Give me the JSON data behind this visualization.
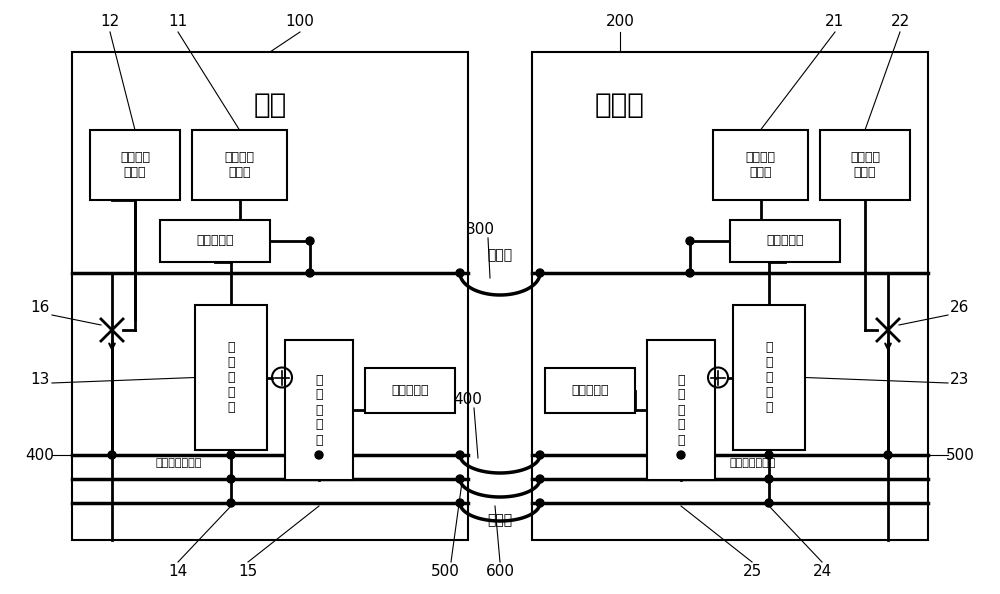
{
  "bg_color": "#ffffff",
  "fig_width": 10.0,
  "fig_height": 5.94,
  "loco_label": "机车",
  "work_label": "作业车",
  "label_100": "100",
  "label_200": "200",
  "label_11": "11",
  "label_12": "12",
  "label_13": "13",
  "label_14": "14",
  "label_15": "15",
  "label_16": "16",
  "label_21": "21",
  "label_22": "22",
  "label_23": "23",
  "label_24": "24",
  "label_25": "25",
  "label_26": "26",
  "label_300": "300",
  "label_400a": "400",
  "label_400b": "400",
  "label_500a": "500",
  "label_500b": "500",
  "label_600": "600",
  "pipe_lieche": "列车管",
  "pipe_zongfeng": "总风管",
  "pipe_first_single": "第一单独制动管",
  "pipe_second_single": "第二单独制动管",
  "box_first_auto": "第一自动\n控制阀",
  "box_first_single_ctrl": "第一单独\n控制阀",
  "box_first_relay": "第一中继阀",
  "box_first_dist": "第\n一\n分\n配\n阀",
  "box_first_action": "第\n一\n作\n用\n阀",
  "box_first_brake": "第一制动缸",
  "box_second_auto": "第二自动\n控制阀",
  "box_second_single_ctrl": "第二单独\n控制阀",
  "box_second_relay": "第二中继阀",
  "box_second_dist": "第\n二\n分\n配\n阀",
  "box_second_action": "第\n二\n作\n用\n阀",
  "box_second_brake": "第二制动缸"
}
